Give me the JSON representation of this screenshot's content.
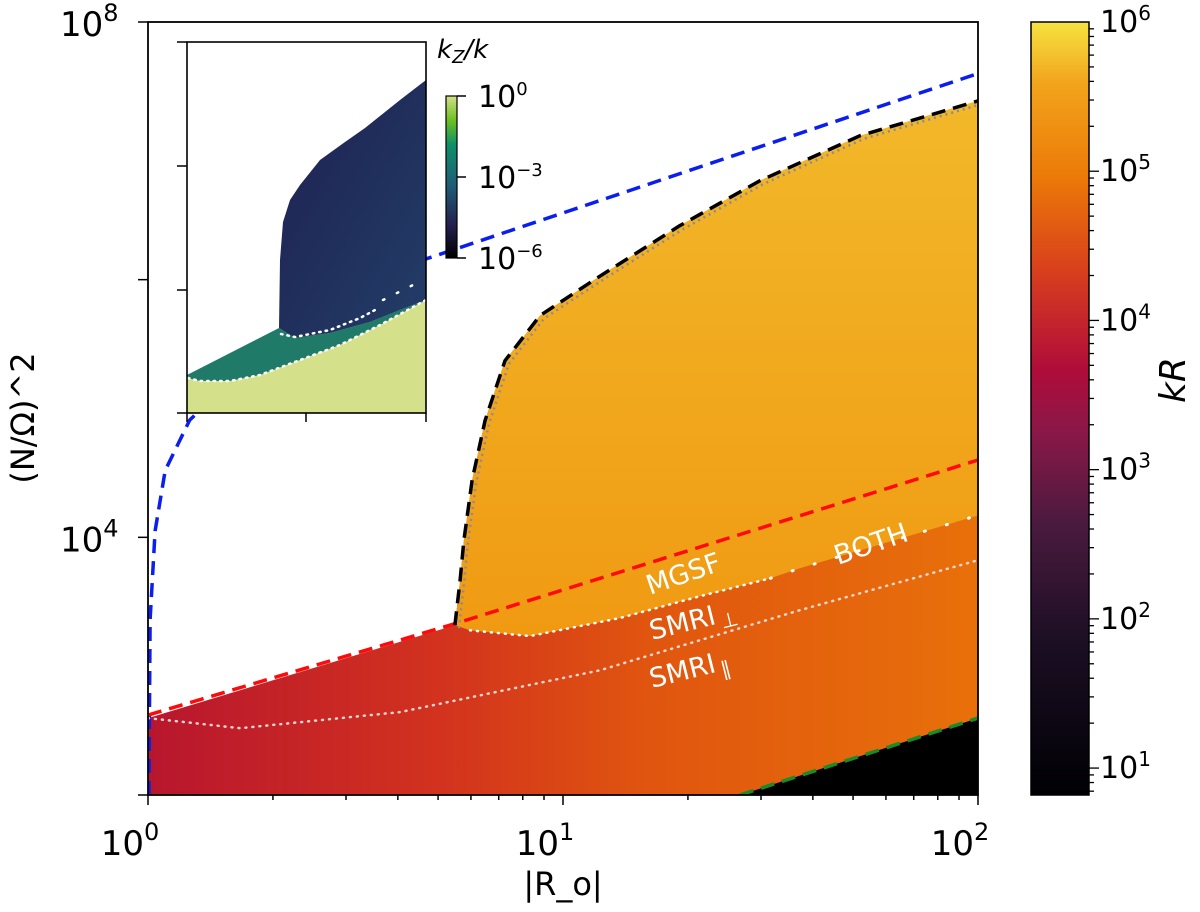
{
  "chart_data": {
    "type": "heatmap",
    "xlabel": "|R_o|",
    "ylabel": "(N/Ω)^2",
    "xscale": "log",
    "yscale": "log",
    "xlim": [
      1,
      100
    ],
    "ylim": [
      100,
      100000000
    ],
    "xticks": [
      {
        "value": 1,
        "base": "10",
        "exp": "0"
      },
      {
        "value": 10,
        "base": "10",
        "exp": "1"
      },
      {
        "value": 100,
        "base": "10",
        "exp": "2"
      }
    ],
    "yticks": [
      {
        "value": 100,
        "base": "",
        "exp": ""
      },
      {
        "value": 10000,
        "base": "10",
        "exp": "4"
      },
      {
        "value": 1000000,
        "base": "",
        "exp": ""
      },
      {
        "value": 100000000,
        "base": "10",
        "exp": "8"
      }
    ],
    "colorbar": {
      "label": "kR",
      "scale": "log",
      "range": [
        6.6,
        1000000
      ],
      "colormap": "inferno",
      "ticks": [
        {
          "value": 10,
          "exp": "1"
        },
        {
          "value": 100,
          "exp": "2"
        },
        {
          "value": 1000,
          "exp": "3"
        },
        {
          "value": 10000,
          "exp": "4"
        },
        {
          "value": 100000,
          "exp": "5"
        },
        {
          "value": 1000000,
          "exp": "6"
        }
      ]
    },
    "curves": [
      {
        "name": "blue-dashed",
        "color": "#0a1ef0",
        "style": "dashed",
        "points": [
          [
            1.005,
            100
          ],
          [
            1.012,
            2290
          ],
          [
            1.04,
            11200
          ],
          [
            1.1,
            33100
          ],
          [
            1.26,
            81300
          ],
          [
            1.45,
            126000
          ],
          [
            4.68,
            1450000
          ],
          [
            100,
            39800000
          ]
        ]
      },
      {
        "name": "red-dashed",
        "color": "#ff0a0a",
        "style": "dashed",
        "points": [
          [
            1,
            417
          ],
          [
            5.5,
            2140
          ],
          [
            100,
            39800
          ]
        ]
      },
      {
        "name": "black-dashed",
        "color": "#000000",
        "style": "dashed",
        "points": [
          [
            5.49,
            2080
          ],
          [
            5.65,
            4650
          ],
          [
            5.77,
            9490
          ],
          [
            6.04,
            27700
          ],
          [
            6.49,
            80800
          ],
          [
            7.25,
            235000
          ],
          [
            8.8,
            526000
          ],
          [
            12.3,
            1070000
          ],
          [
            19.1,
            2620000
          ],
          [
            29.8,
            5850000
          ],
          [
            52,
            13100000
          ],
          [
            100,
            24400000
          ]
        ]
      },
      {
        "name": "green-dashed",
        "color": "#1a8a2a",
        "style": "dashed",
        "points": [
          [
            26.7,
            100
          ],
          [
            100,
            395
          ]
        ]
      },
      {
        "name": "SMRI-parallel-boundary",
        "color": "#f4d6d0",
        "style": "dotted",
        "points": [
          [
            1,
            395
          ],
          [
            1.67,
            330
          ],
          [
            4.05,
            440
          ],
          [
            12.3,
            931
          ],
          [
            37.2,
            2720
          ],
          [
            100,
            6640
          ]
        ]
      },
      {
        "name": "SMRI-perp-boundary",
        "color": "#ffffff",
        "style": "dotted",
        "points": [
          [
            5.97,
            1900
          ],
          [
            8.32,
            1710
          ],
          [
            13.7,
            2360
          ],
          [
            21.4,
            3490
          ],
          [
            31.6,
            4810
          ]
        ]
      },
      {
        "name": "BOTH-boundary",
        "color": "#ffffff",
        "style": "sparse-dotted",
        "points": [
          [
            31.6,
            4810
          ],
          [
            37.2,
            5750
          ],
          [
            100,
            14800
          ]
        ]
      }
    ],
    "regions": [
      {
        "name": "unstable",
        "lower_edge": [
          [
            1,
            395
          ],
          [
            5.49,
            2080
          ]
        ],
        "color_low": "#b8162e",
        "color_high": "#e8700a"
      },
      {
        "name": "MGSF",
        "color": "#f2a516"
      },
      {
        "name": "stable-dark",
        "color": "#000000"
      }
    ],
    "annotations": [
      {
        "text": "MGSF"
      },
      {
        "text": "BOTH"
      },
      {
        "text": "SMRI",
        "sub": "⊥"
      },
      {
        "text": "SMRI",
        "sub": "∥"
      }
    ],
    "inset": {
      "colorbar": {
        "label_base": "k",
        "label_sub": "Z",
        "label_tail": "/k",
        "colormap": "viridis-like",
        "range": [
          1e-06,
          1
        ],
        "ticks": [
          {
            "base": "10",
            "exp": "0"
          },
          {
            "base": "10",
            "exp": "−3"
          },
          {
            "base": "10",
            "exp": "−6"
          }
        ]
      },
      "colors": {
        "low": "#232c5a",
        "mid": "#1f7a68",
        "high": "#d4e08a"
      }
    }
  }
}
